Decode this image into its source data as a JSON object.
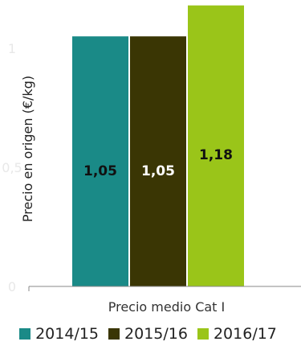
{
  "chart_data": {
    "type": "bar",
    "categories": [
      "Precio medio Cat I"
    ],
    "series": [
      {
        "name": "2014/15",
        "values": [
          1.05
        ],
        "color": "#1a8a87"
      },
      {
        "name": "2015/16",
        "values": [
          1.05
        ],
        "color": "#3a3604"
      },
      {
        "name": "2016/17",
        "values": [
          1.18
        ],
        "color": "#9ac519"
      }
    ],
    "data_labels": [
      "1,05",
      "1,05",
      "1,18"
    ],
    "ylabel": "Precio en origen (€/kg)",
    "yticks": [
      "0",
      "0,5",
      "1"
    ],
    "ylim": [
      0,
      1.25
    ],
    "legend_position": "bottom",
    "grid": false
  }
}
